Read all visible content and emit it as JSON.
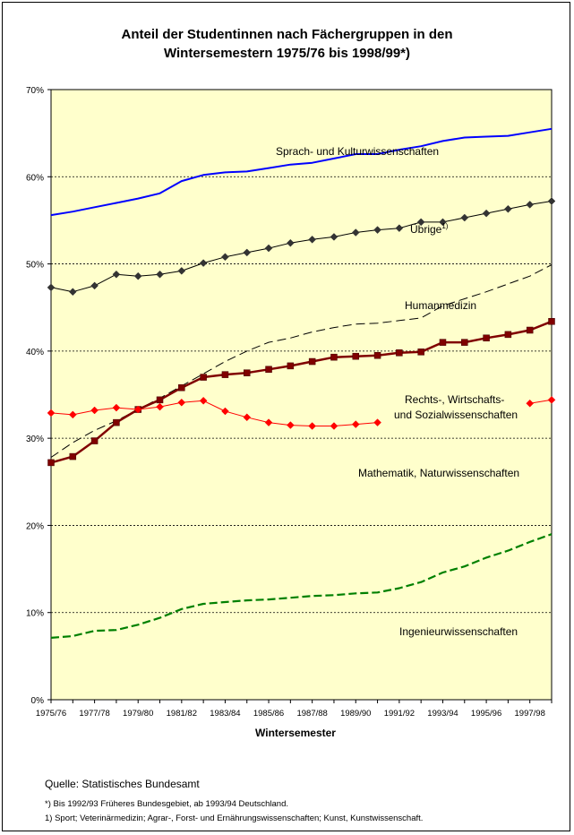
{
  "page": {
    "source": "Quelle: Statistisches Bundesamt",
    "notes": [
      "*) Bis 1992/93 Früheres Bundesgebiet, ab 1993/94 Deutschland.",
      "1) Sport; Veterinärmedizin; Agrar-, Forst- und Ernährungswissenschaften; Kunst, Kunstwissenschaft."
    ]
  },
  "chart_data": {
    "type": "line",
    "title_lines": [
      "Anteil der Studentinnen nach Fächergruppen in den",
      "Wintersemestern 1975/76 bis 1998/99*)"
    ],
    "xlabel": "Wintersemester",
    "ylabel": "",
    "ylim": [
      0,
      70
    ],
    "yticks": [
      "0%",
      "10%",
      "20%",
      "30%",
      "40%",
      "50%",
      "60%",
      "70%"
    ],
    "categories": [
      "1975/76",
      "1976/77",
      "1977/78",
      "1978/79",
      "1979/80",
      "1980/81",
      "1981/82",
      "1982/83",
      "1983/84",
      "1984/85",
      "1985/86",
      "1986/87",
      "1987/88",
      "1988/89",
      "1989/90",
      "1990/91",
      "1991/92",
      "1992/93",
      "1993/94",
      "1994/95",
      "1995/96",
      "1996/97",
      "1997/98",
      "1998/99"
    ],
    "xticks_shown": [
      "1975/76",
      "1977/78",
      "1979/80",
      "1981/82",
      "1983/84",
      "1985/86",
      "1987/88",
      "1989/90",
      "1991/92",
      "1993/94",
      "1995/96",
      "1997/98"
    ],
    "background": "#ffffcc",
    "grid": true,
    "series": [
      {
        "name": "Sprach- und Kulturwissenschaften",
        "color": "#0000ff",
        "style": "solid",
        "marker": "none",
        "values": [
          55.6,
          56.0,
          56.5,
          57.0,
          57.5,
          58.1,
          59.5,
          60.2,
          60.5,
          60.6,
          61.0,
          61.4,
          61.6,
          62.1,
          62.6,
          62.6,
          63.1,
          63.5,
          64.1,
          64.5,
          64.6,
          64.7,
          65.1,
          65.5
        ]
      },
      {
        "name": "Übrige¹⁾",
        "color": "#000000",
        "style": "solid-thin",
        "marker": "diamond",
        "marker_color": "#333333",
        "values": [
          47.3,
          46.8,
          47.5,
          48.8,
          48.6,
          48.8,
          49.2,
          50.1,
          50.8,
          51.3,
          51.8,
          52.4,
          52.8,
          53.1,
          53.6,
          53.9,
          54.1,
          54.8,
          54.8,
          55.3,
          55.8,
          56.3,
          56.8,
          57.2
        ]
      },
      {
        "name": "Humanmedizin",
        "color": "#000000",
        "style": "dashed-thin",
        "marker": "none",
        "values": [
          27.8,
          29.5,
          30.9,
          32.0,
          33.3,
          34.6,
          36.0,
          37.4,
          38.8,
          40.0,
          41.0,
          41.5,
          42.2,
          42.7,
          43.1,
          43.2,
          43.5,
          43.8,
          45.2,
          46.0,
          46.8,
          47.7,
          48.6,
          49.9
        ]
      },
      {
        "name": "Mathematik, Naturwissenschaften",
        "color": "#800000",
        "style": "solid-thick",
        "marker": "square",
        "marker_color": "#800000",
        "values": [
          27.2,
          27.9,
          29.7,
          31.8,
          33.3,
          34.4,
          35.8,
          37.0,
          37.3,
          37.5,
          37.9,
          38.3,
          38.8,
          39.3,
          39.4,
          39.5,
          39.8,
          39.9,
          41.0,
          41.0,
          41.5,
          41.9,
          42.4,
          43.4
        ]
      },
      {
        "name": "Rechts-, Wirtschafts- und Sozialwissenschaften",
        "color": "#ff0000",
        "style": "solid-thin",
        "marker": "diamond",
        "marker_color": "#ff0000",
        "values": [
          32.9,
          32.7,
          33.2,
          33.5,
          33.3,
          33.6,
          34.1,
          34.3,
          33.1,
          32.4,
          31.8,
          31.5,
          31.4,
          31.4,
          31.6,
          31.8,
          null,
          null,
          null,
          null,
          null,
          null,
          34.0,
          34.4
        ]
      },
      {
        "name": "Ingenieurwissenschaften",
        "color": "#008000",
        "style": "dashed-thick",
        "marker": "none",
        "values": [
          7.1,
          7.3,
          7.9,
          8.0,
          8.6,
          9.4,
          10.4,
          11.0,
          11.2,
          11.4,
          11.5,
          11.7,
          11.9,
          12.0,
          12.2,
          12.3,
          12.8,
          13.5,
          14.6,
          15.3,
          16.3,
          17.1,
          18.1,
          19.0
        ]
      }
    ],
    "labels": [
      {
        "text": "Sprach- und Kulturwissenschaften"
      },
      {
        "text": "Übrige",
        "sup": "1)"
      },
      {
        "text": "Humanmedizin"
      },
      {
        "text": "Rechts-, Wirtschafts-"
      },
      {
        "text": "und Sozialwissenschaften"
      },
      {
        "text": "Mathematik, Naturwissenschaften"
      },
      {
        "text": "Ingenieurwissenschaften"
      }
    ]
  }
}
